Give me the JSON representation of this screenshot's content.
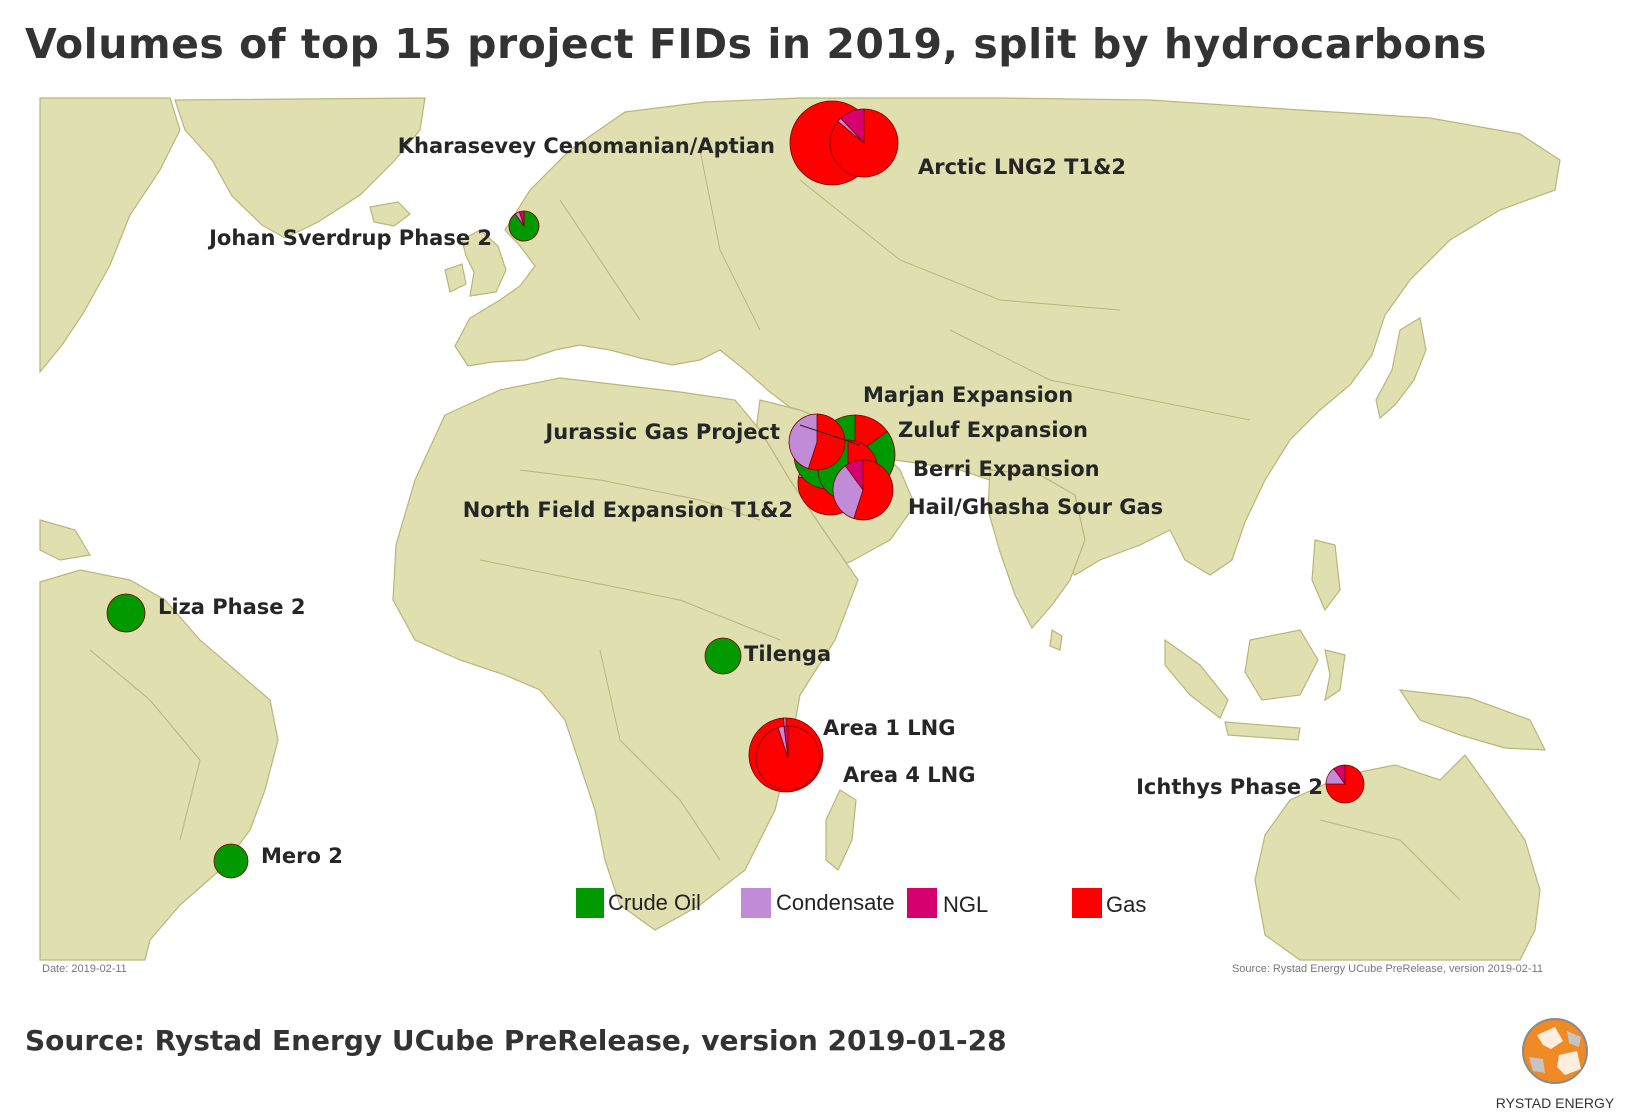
{
  "title": "Volumes of top 15 project FIDs in 2019, split by hydrocarbons",
  "source_text": "Source: Rystad Energy UCube PreRelease, version 2019-01-28",
  "map_date": "Date: 2019-02-11",
  "map_source": "Source: Rystad Energy UCube PreRelease, version 2019-02-11",
  "logo_text": "RYSTAD ENERGY",
  "colors": {
    "land": "#e0dfb0",
    "border": "#b9b67a",
    "crude_oil": "#009a00",
    "condensate": "#c28bd8",
    "ngl": "#d6006e",
    "gas": "#ff0000"
  },
  "legend": [
    {
      "label": "Crude Oil",
      "color": "#009a00"
    },
    {
      "label": "Condensate",
      "color": "#c28bd8"
    },
    {
      "label": "NGL",
      "color": "#d6006e"
    },
    {
      "label": "Gas",
      "color": "#ff0000"
    }
  ],
  "projects": [
    {
      "name": "Kharasevey Cenomanian/Aptian",
      "shares": {
        "crude_oil": 0,
        "condensate": 0,
        "ngl": 0,
        "gas": 1
      }
    },
    {
      "name": "Arctic LNG2 T1&2",
      "shares": {
        "crude_oil": 0,
        "condensate": 0.02,
        "ngl": 0.12,
        "gas": 0.86
      }
    },
    {
      "name": "Johan Sverdrup Phase 2",
      "shares": {
        "crude_oil": 0.9,
        "condensate": 0.05,
        "ngl": 0.05,
        "gas": 0
      }
    },
    {
      "name": "Marjan Expansion",
      "shares": {
        "crude_oil": 0.55,
        "condensate": 0,
        "ngl": 0.05,
        "gas": 0.4
      }
    },
    {
      "name": "Jurassic Gas Project",
      "shares": {
        "crude_oil": 0,
        "condensate": 0.45,
        "ngl": 0,
        "gas": 0.55
      }
    },
    {
      "name": "Zuluf Expansion",
      "shares": {
        "crude_oil": 0.85,
        "condensate": 0,
        "ngl": 0,
        "gas": 0.15
      }
    },
    {
      "name": "Berri Expansion",
      "shares": {
        "crude_oil": 0.8,
        "condensate": 0,
        "ngl": 0,
        "gas": 0.2
      }
    },
    {
      "name": "North Field Expansion T1&2",
      "shares": {
        "crude_oil": 0,
        "condensate": 0.12,
        "ngl": 0.1,
        "gas": 0.78
      }
    },
    {
      "name": "Hail/Ghasha Sour Gas",
      "shares": {
        "crude_oil": 0,
        "condensate": 0.35,
        "ngl": 0.1,
        "gas": 0.55
      }
    },
    {
      "name": "Liza Phase 2",
      "shares": {
        "crude_oil": 1,
        "condensate": 0,
        "ngl": 0,
        "gas": 0
      }
    },
    {
      "name": "Tilenga",
      "shares": {
        "crude_oil": 1,
        "condensate": 0,
        "ngl": 0,
        "gas": 0
      }
    },
    {
      "name": "Area 1 LNG",
      "shares": {
        "crude_oil": 0,
        "condensate": 0.01,
        "ngl": 0,
        "gas": 0.99
      }
    },
    {
      "name": "Area 4 LNG",
      "shares": {
        "crude_oil": 0,
        "condensate": 0.03,
        "ngl": 0.02,
        "gas": 0.95
      }
    },
    {
      "name": "Ichthys Phase 2",
      "shares": {
        "crude_oil": 0,
        "condensate": 0.15,
        "ngl": 0.1,
        "gas": 0.75
      }
    },
    {
      "name": "Mero 2",
      "shares": {
        "crude_oil": 1,
        "condensate": 0,
        "ngl": 0,
        "gas": 0
      }
    }
  ]
}
